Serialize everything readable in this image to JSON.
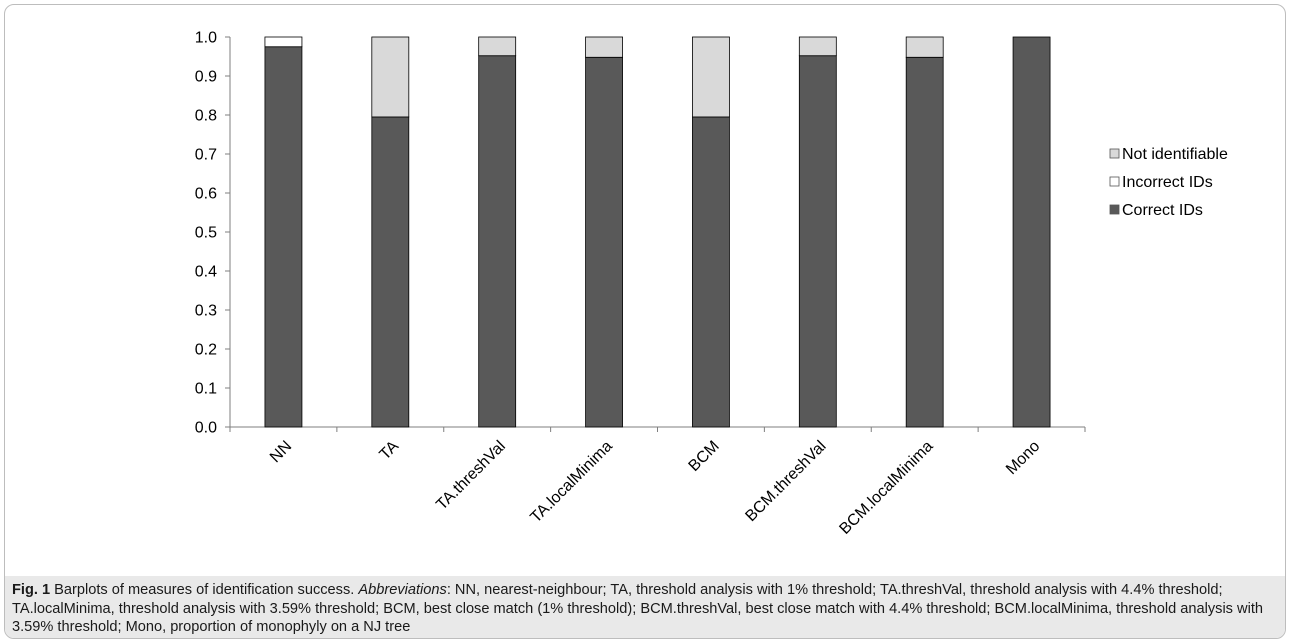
{
  "chart_data": {
    "type": "bar",
    "stacked": true,
    "categories": [
      "NN",
      "TA",
      "TA.threshVal",
      "TA.localMinima",
      "BCM",
      "BCM.threshVal",
      "BCM.localMinima",
      "Mono"
    ],
    "series": [
      {
        "name": "Correct IDs",
        "color": "#595959",
        "values": [
          0.975,
          0.795,
          0.952,
          0.948,
          0.795,
          0.952,
          0.948,
          1.0
        ]
      },
      {
        "name": "Incorrect IDs",
        "color": "#ffffff",
        "values": [
          0.025,
          0.0,
          0.0,
          0.0,
          0.0,
          0.0,
          0.0,
          0.0
        ]
      },
      {
        "name": "Not identifiable",
        "color": "#d9d9d9",
        "values": [
          0.0,
          0.205,
          0.048,
          0.052,
          0.205,
          0.048,
          0.052,
          0.0
        ]
      }
    ],
    "ylim": [
      0,
      1.0
    ],
    "yticks": [
      "0.0",
      "0.1",
      "0.2",
      "0.3",
      "0.4",
      "0.5",
      "0.6",
      "0.7",
      "0.8",
      "0.9",
      "1.0"
    ],
    "grid": false,
    "legend": {
      "position": "right",
      "order": [
        "Not identifiable",
        "Incorrect IDs",
        "Correct IDs"
      ]
    }
  },
  "caption": {
    "label": "Fig. 1",
    "title": "Barplots of measures of identification success.",
    "abbr_label": "Abbreviations",
    "text": ": NN, nearest-neighbour; TA, threshold analysis with 1% threshold; TA.threshVal, threshold analysis with 4.4% threshold; TA.localMinima, threshold analysis with 3.59% threshold; BCM, best close match (1% threshold); BCM.threshVal, best close match with 4.4% threshold; BCM.localMinima, threshold analysis with 3.59% threshold; Mono, proportion of monophyly on a NJ tree"
  }
}
